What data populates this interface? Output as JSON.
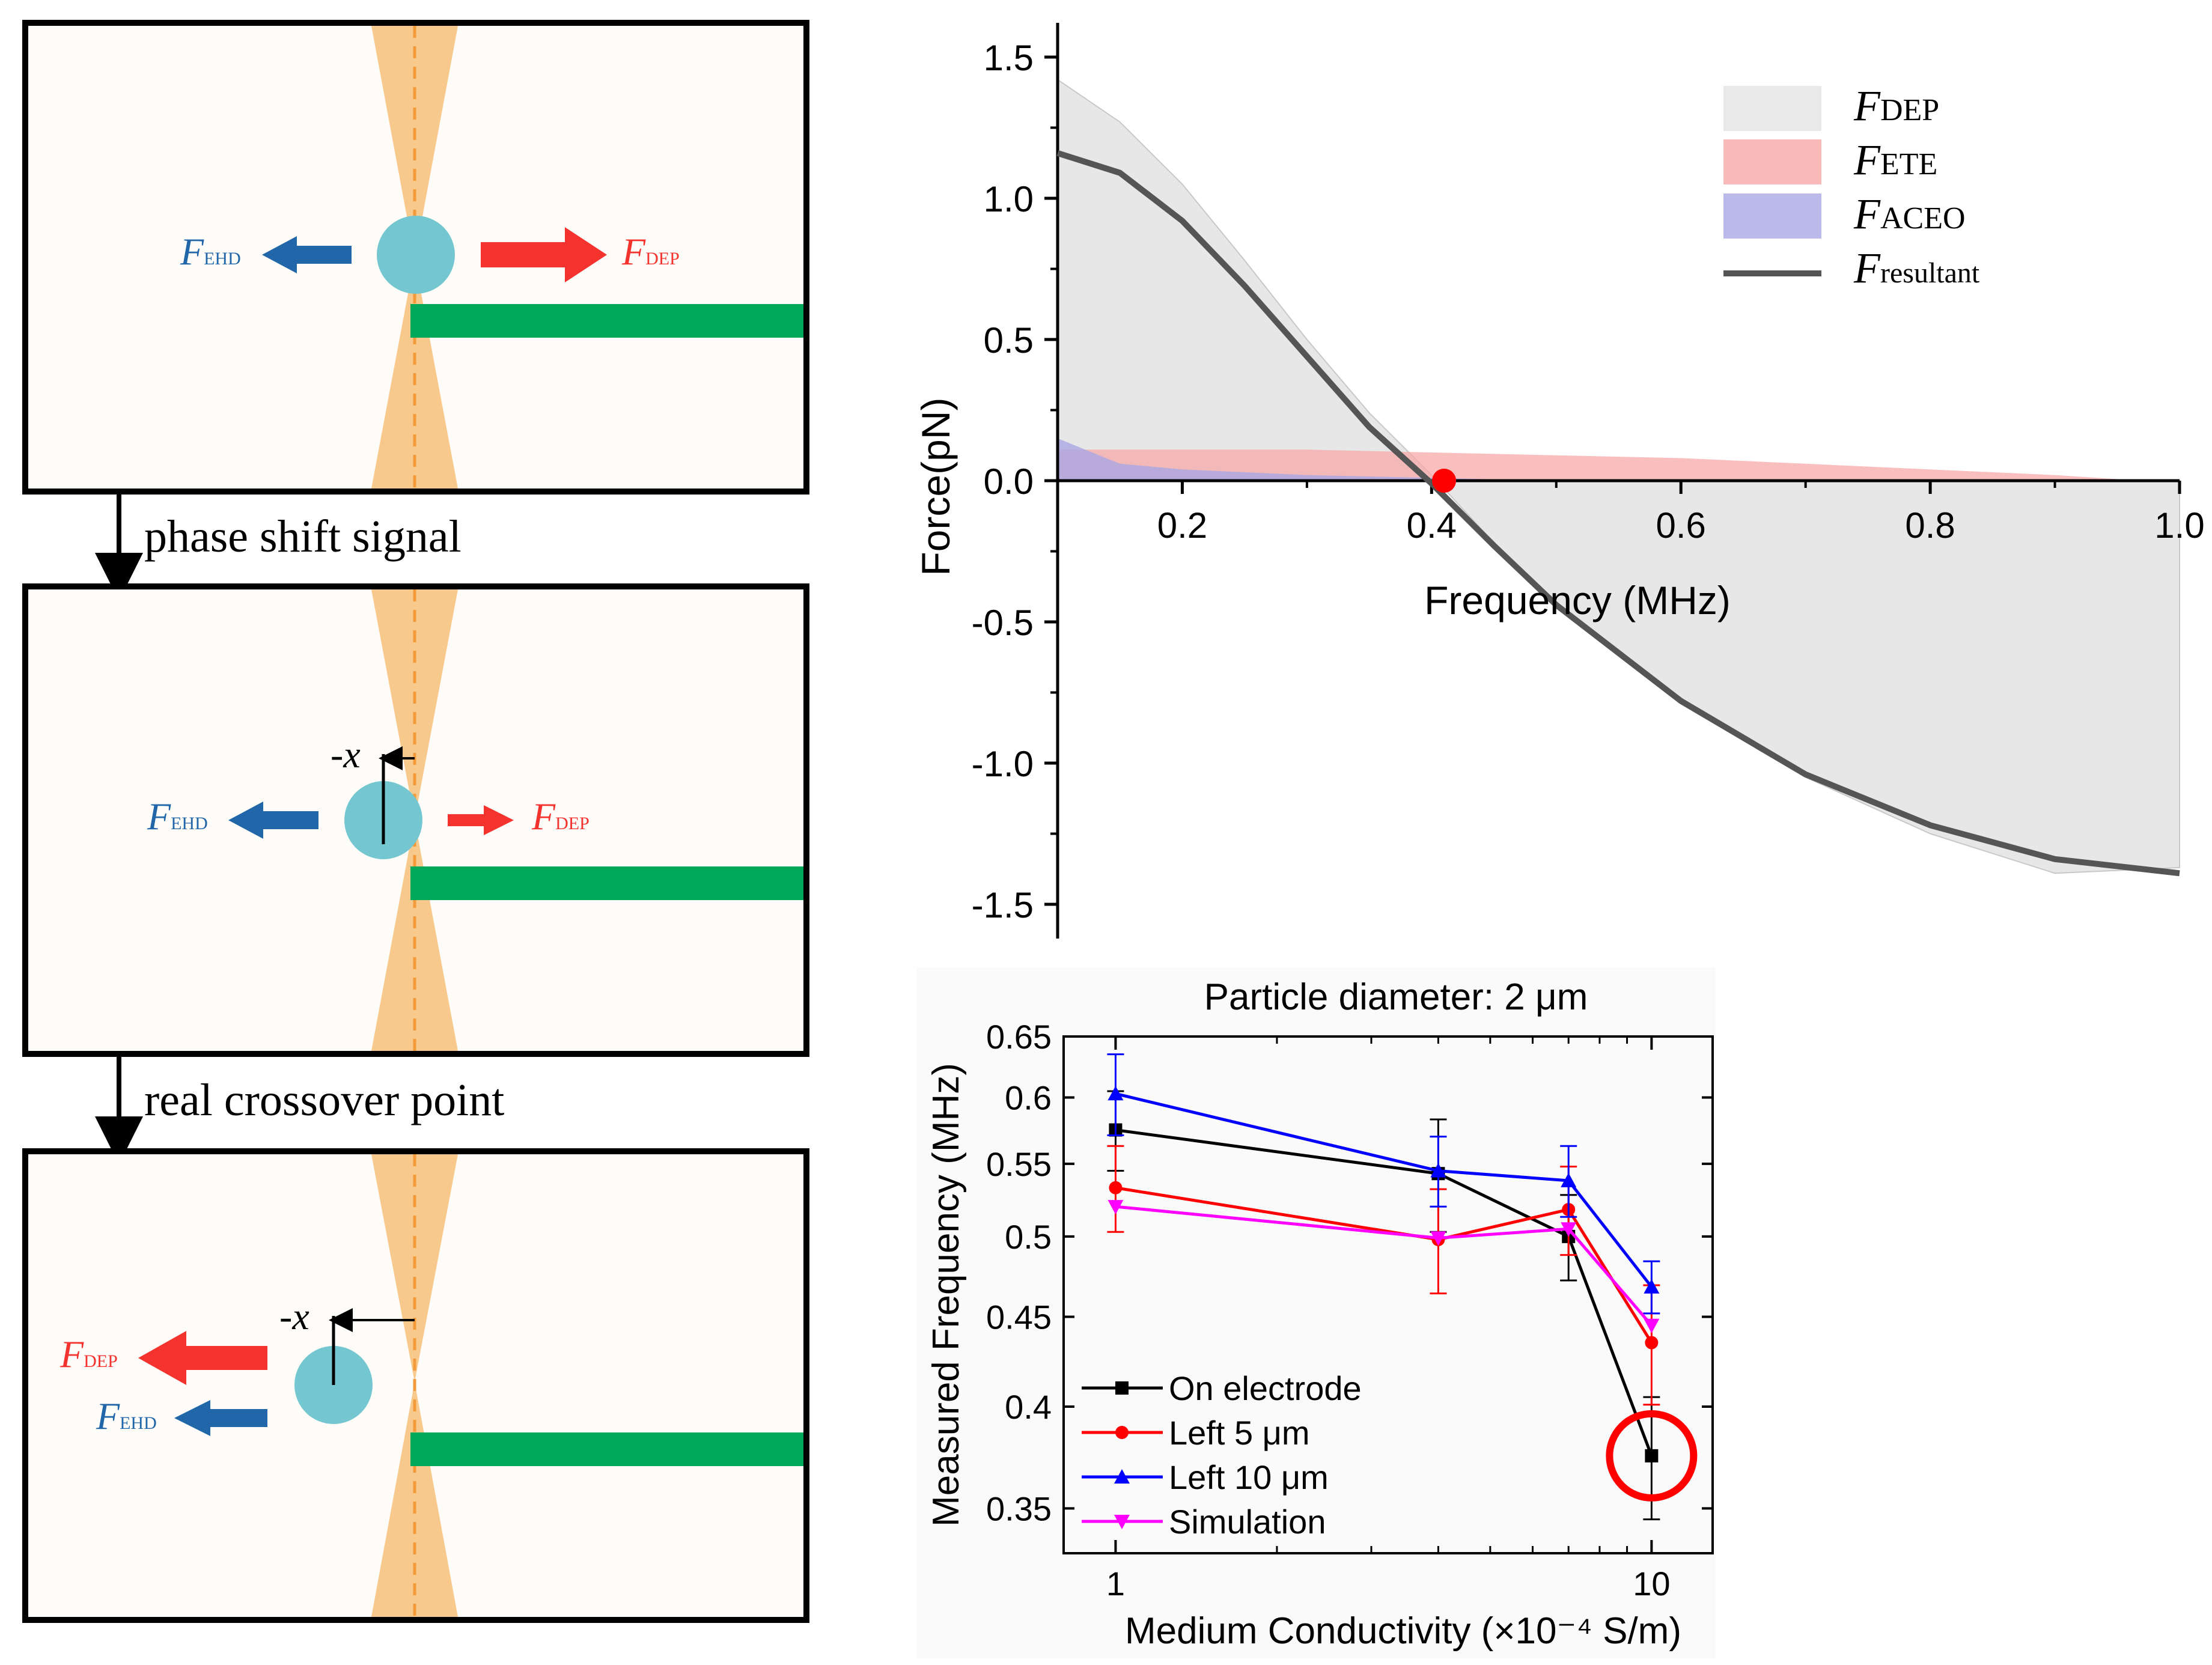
{
  "panels": [
    {
      "left": {
        "label": "F",
        "sub": "EHD"
      },
      "right": {
        "label": "F",
        "sub": "DEP"
      }
    },
    {
      "left": {
        "label": "F",
        "sub": "EHD"
      },
      "right": {
        "label": "F",
        "sub": "DEP"
      },
      "offset": "-x"
    },
    {
      "top": {
        "label": "F",
        "sub": "DEP"
      },
      "bottom": {
        "label": "F",
        "sub": "EHD"
      },
      "offset": "-x"
    }
  ],
  "transitions": [
    "phase shift signal",
    "real crossover point"
  ],
  "colors": {
    "ehd": "#2166a8",
    "dep": "#f4332f",
    "particle": "#74c7d0",
    "electrode": "#00a85a",
    "beam": "#f8c98c",
    "beam_line": "#f39b3a",
    "ete": "#f7a9a9",
    "aceo": "#a9a7e4",
    "dep_fill": "#e3e3e3",
    "resultant": "#555555",
    "crossover": "#ff0000"
  },
  "chart_data": [
    {
      "type": "area",
      "title": "",
      "xlabel": "Frequency (MHz)",
      "ylabel": "Force(pN)",
      "xlim": [
        0.1,
        1.0
      ],
      "ylim": [
        -1.6,
        1.6
      ],
      "xticks": [
        "0.2",
        "0.4",
        "0.6",
        "0.8",
        "1.0"
      ],
      "yticks": [
        "-1.5",
        "-1.0",
        "-0.5",
        "0.0",
        "0.5",
        "1.0",
        "1.5"
      ],
      "legend": [
        {
          "label": "F",
          "sub": "DEP"
        },
        {
          "label": "F",
          "sub": "ETE"
        },
        {
          "label": "F",
          "sub": "ACEO"
        },
        {
          "label": "F",
          "sub": "resultant"
        }
      ],
      "series": [
        {
          "name": "FDEP",
          "x": [
            0.1,
            0.15,
            0.2,
            0.25,
            0.3,
            0.35,
            0.4,
            0.45,
            0.5,
            0.6,
            0.7,
            0.8,
            0.9,
            1.0
          ],
          "values": [
            1.42,
            1.27,
            1.05,
            0.78,
            0.5,
            0.24,
            0.02,
            -0.22,
            -0.43,
            -0.78,
            -1.05,
            -1.25,
            -1.39,
            -1.37
          ]
        },
        {
          "name": "FETE",
          "x": [
            0.1,
            0.2,
            0.3,
            0.4,
            0.5,
            0.6,
            0.7,
            0.8,
            0.9,
            0.97,
            1.0
          ],
          "values": [
            0.11,
            0.11,
            0.11,
            0.1,
            0.09,
            0.08,
            0.06,
            0.04,
            0.02,
            0.0,
            0.0
          ]
        },
        {
          "name": "FACEO",
          "x": [
            0.1,
            0.15,
            0.2,
            0.3,
            0.4,
            0.5
          ],
          "values": [
            0.15,
            0.06,
            0.04,
            0.02,
            0.01,
            0.0
          ]
        },
        {
          "name": "Fresultant",
          "x": [
            0.1,
            0.15,
            0.2,
            0.25,
            0.3,
            0.35,
            0.4,
            0.45,
            0.5,
            0.6,
            0.7,
            0.8,
            0.9,
            1.0
          ],
          "values": [
            1.16,
            1.09,
            0.92,
            0.69,
            0.44,
            0.19,
            -0.01,
            -0.23,
            -0.44,
            -0.78,
            -1.04,
            -1.22,
            -1.34,
            -1.39
          ]
        }
      ],
      "crossover_point": {
        "x": 0.41,
        "y": 0.0
      }
    },
    {
      "type": "line",
      "title": "Particle diameter: 2 μm",
      "xlabel": "Medium Conductivity (×10⁻⁴ S/m)",
      "ylabel": "Measured Frequency (MHz)",
      "xscale": "log",
      "yscale": "log",
      "xlim": [
        0.8,
        13
      ],
      "ylim": [
        0.33,
        0.65
      ],
      "xticks": [
        "1",
        "10"
      ],
      "yticks": [
        "0.35",
        "0.4",
        "0.45",
        "0.5",
        "0.55",
        "0.6",
        "0.65"
      ],
      "legend_position": "bottom-left",
      "series": [
        {
          "name": "On electrode",
          "color": "#000000",
          "marker": "square",
          "x": [
            1,
            4,
            7,
            10
          ],
          "values": [
            0.575,
            0.543,
            0.5,
            0.375
          ],
          "errors": [
            0.03,
            0.04,
            0.028,
            0.03
          ]
        },
        {
          "name": "Left 5 μm",
          "color": "#ff0000",
          "marker": "circle",
          "x": [
            1,
            4,
            7,
            10
          ],
          "values": [
            0.533,
            0.498,
            0.518,
            0.435
          ],
          "errors": [
            0.03,
            0.034,
            0.03,
            0.034
          ]
        },
        {
          "name": "Left 10 μm",
          "color": "#0000ff",
          "marker": "triangle",
          "x": [
            1,
            4,
            7,
            10
          ],
          "values": [
            0.603,
            0.545,
            0.538,
            0.468
          ],
          "errors": [
            0.032,
            0.025,
            0.025,
            0.016
          ]
        },
        {
          "name": "Simulation",
          "color": "#ff00ff",
          "marker": "triangle-down",
          "x": [
            1,
            4,
            7,
            10
          ],
          "values": [
            0.52,
            0.499,
            0.505,
            0.445
          ],
          "errors": [
            0,
            0,
            0,
            0
          ]
        }
      ],
      "highlight": {
        "series": "On electrode",
        "x": 10,
        "color": "#ff0000"
      }
    }
  ]
}
